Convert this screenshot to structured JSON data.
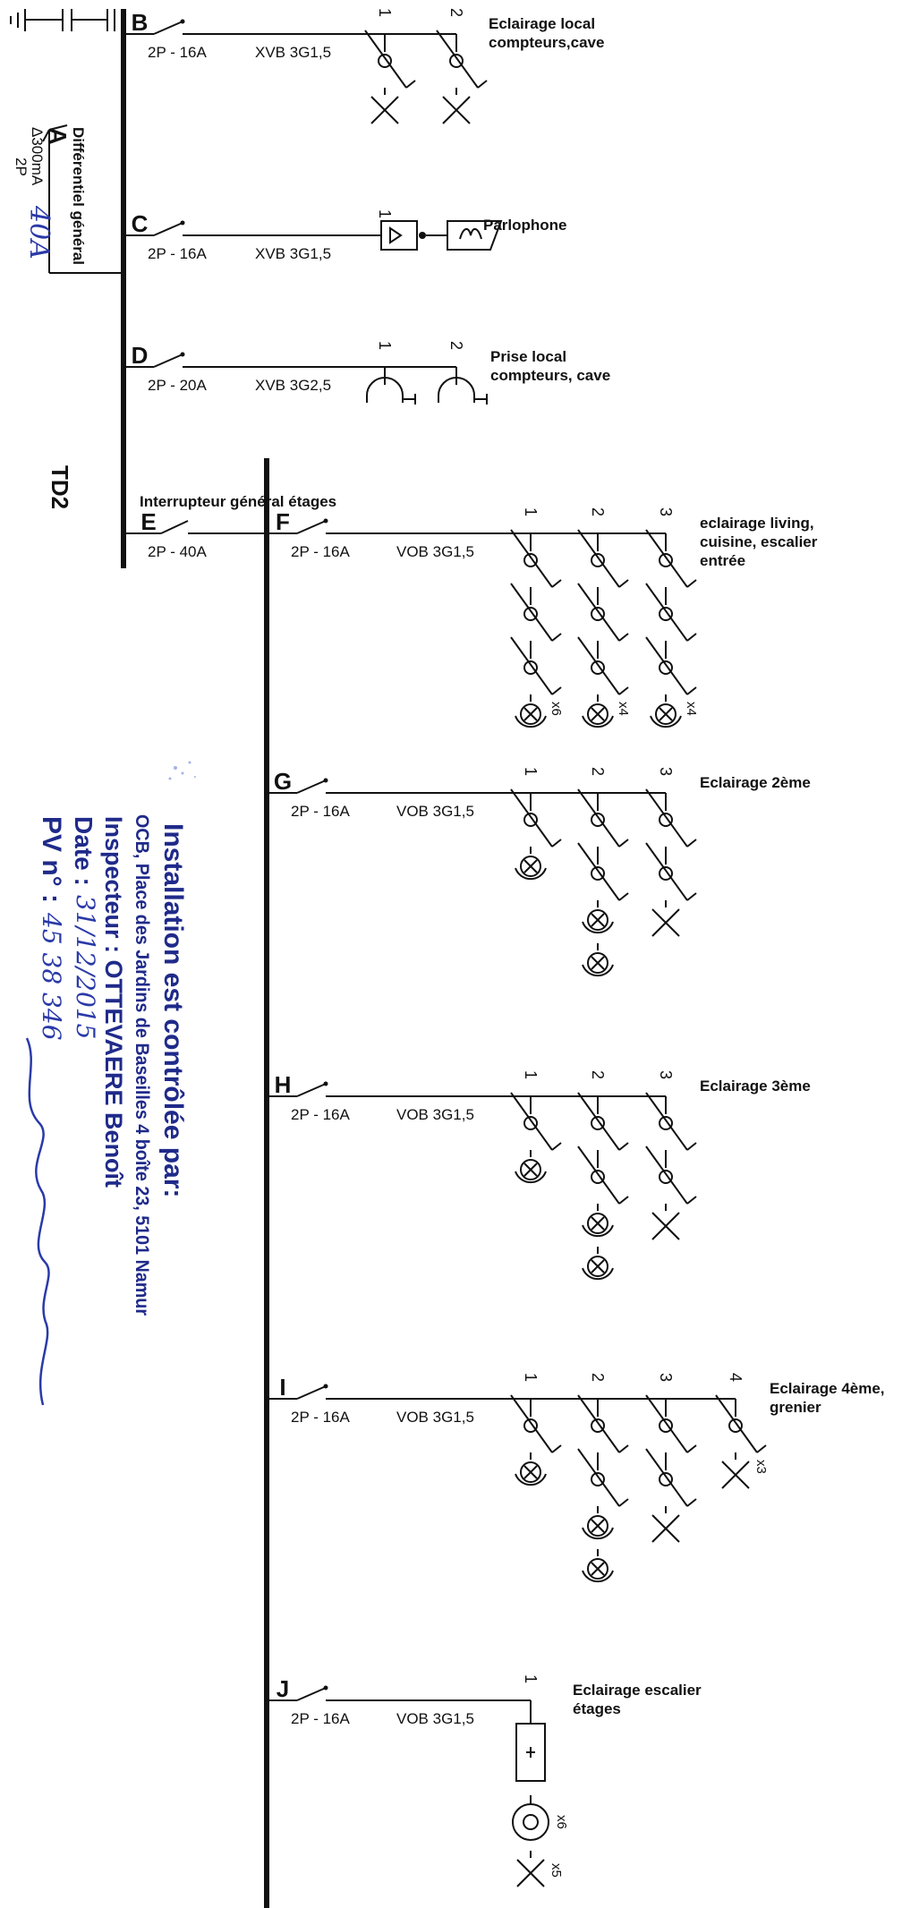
{
  "board": {
    "title": "TD2",
    "main_breaker": {
      "letter": "A",
      "type": "Différentiel général",
      "sensitivity": "Δ300mA",
      "poles": "2P",
      "handwritten_rating": "40A"
    },
    "general_switch": {
      "letter": "E",
      "label": "Interrupteur général étages",
      "rating": "2P - 40A"
    }
  },
  "circuits": [
    {
      "letter": "B",
      "rating": "2P - 16A",
      "cable": "XVB 3G1,5",
      "description": [
        "Eclairage local",
        "compteurs,cave"
      ],
      "points": [
        {
          "n": "1",
          "symbols": [
            "switch",
            "lamp-x"
          ]
        },
        {
          "n": "2",
          "symbols": [
            "switch",
            "lamp-x"
          ]
        }
      ]
    },
    {
      "letter": "C",
      "rating": "2P - 16A",
      "cable": "XVB 3G1,5",
      "description": [
        "Parlophone"
      ],
      "points": [
        {
          "n": "1",
          "symbols": [
            "intercom"
          ]
        }
      ]
    },
    {
      "letter": "D",
      "rating": "2P - 20A",
      "cable": "XVB 3G2,5",
      "description": [
        "Prise local",
        "compteurs, cave"
      ],
      "points": [
        {
          "n": "1",
          "symbols": [
            "socket"
          ]
        },
        {
          "n": "2",
          "symbols": [
            "socket"
          ]
        }
      ]
    },
    {
      "letter": "F",
      "rating": "2P - 16A",
      "cable": "VOB 3G1,5",
      "description": [
        "eclairage living,",
        "cuisine, escalier",
        "entrée"
      ],
      "points": [
        {
          "n": "1",
          "symbols": [
            "switch",
            "switch",
            "switch",
            "lamp"
          ],
          "mult": "x6"
        },
        {
          "n": "2",
          "symbols": [
            "switch",
            "switch",
            "switch",
            "lamp"
          ],
          "mult": "x4"
        },
        {
          "n": "3",
          "symbols": [
            "switch",
            "switch",
            "switch",
            "lamp"
          ],
          "mult": "x4"
        }
      ]
    },
    {
      "letter": "G",
      "rating": "2P - 16A",
      "cable": "VOB 3G1,5",
      "description": [
        "Eclairage 2ème"
      ],
      "points": [
        {
          "n": "1",
          "symbols": [
            "switch",
            "lamp"
          ]
        },
        {
          "n": "2",
          "symbols": [
            "switch",
            "switch",
            "lamp",
            "lamp"
          ]
        },
        {
          "n": "3",
          "symbols": [
            "switch",
            "switch",
            "lamp-x"
          ]
        }
      ]
    },
    {
      "letter": "H",
      "rating": "2P - 16A",
      "cable": "VOB 3G1,5",
      "description": [
        "Eclairage 3ème"
      ],
      "points": [
        {
          "n": "1",
          "symbols": [
            "switch",
            "lamp"
          ]
        },
        {
          "n": "2",
          "symbols": [
            "switch",
            "switch",
            "lamp",
            "lamp"
          ]
        },
        {
          "n": "3",
          "symbols": [
            "switch",
            "switch",
            "lamp-x"
          ]
        }
      ]
    },
    {
      "letter": "I",
      "rating": "2P - 16A",
      "cable": "VOB 3G1,5",
      "description": [
        "Eclairage 4ème,",
        "grenier"
      ],
      "points": [
        {
          "n": "1",
          "symbols": [
            "switch",
            "lamp"
          ]
        },
        {
          "n": "2",
          "symbols": [
            "switch",
            "switch",
            "lamp",
            "lamp"
          ]
        },
        {
          "n": "3",
          "symbols": [
            "switch",
            "switch",
            "lamp-x"
          ]
        },
        {
          "n": "4",
          "symbols": [
            "switch",
            "lamp-x"
          ],
          "mult": "x3"
        }
      ]
    },
    {
      "letter": "J",
      "rating": "2P - 16A",
      "cable": "VOB 3G1,5",
      "description": [
        "Eclairage escalier",
        "étages"
      ],
      "points": [
        {
          "n": "1",
          "symbols": [
            "timer",
            "pushbutton",
            "lamp-x"
          ],
          "mults": [
            "x6",
            "x5"
          ]
        }
      ]
    }
  ],
  "inspection_stamp": {
    "line1": "Installation est contrôlée par:",
    "line2": "OCB, Place des Jardins de Baseilles 4 boîte 23, 5101 Namur",
    "line3": "Inspecteur :  OTTEVAERE Benoît",
    "date_label": "Date :",
    "date_value": "31/12/2015",
    "pv_label": "PV n° :",
    "pv_value": "45 38 346"
  },
  "colors": {
    "line": "#111111",
    "stamp": "#1f2a8a",
    "handwriting": "#2a3aa8"
  }
}
